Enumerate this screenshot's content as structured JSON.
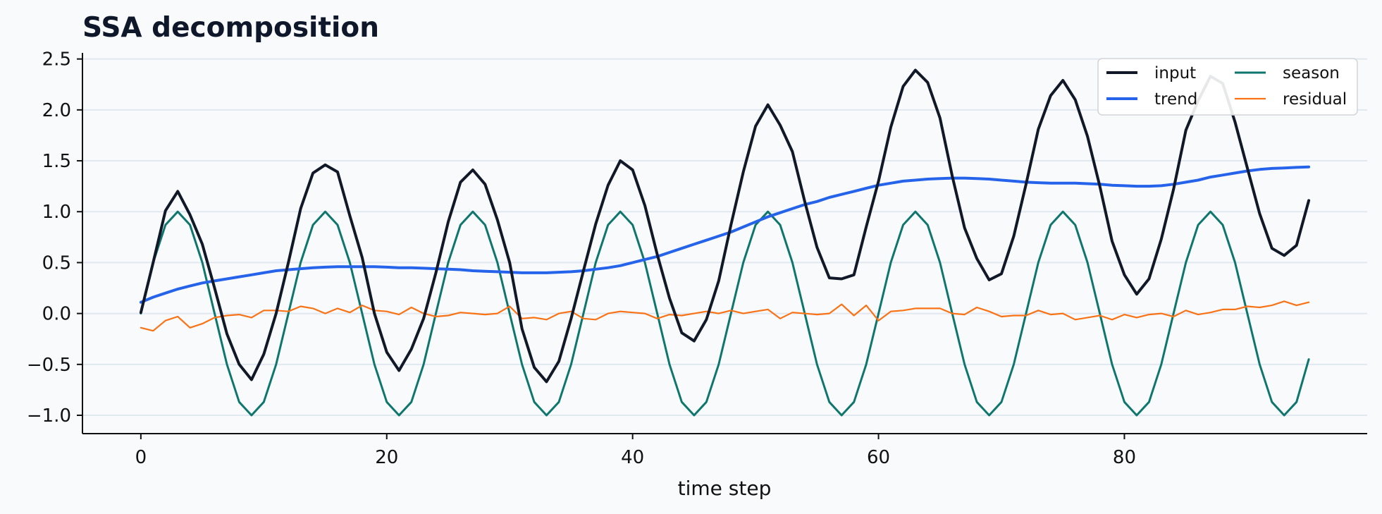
{
  "chart_data": {
    "type": "line",
    "title": "SSA decomposition",
    "xlabel": "time step",
    "ylabel": "",
    "xlim": [
      -4.75,
      99.75
    ],
    "ylim": [
      -1.18,
      2.56
    ],
    "xticks": [
      0,
      20,
      40,
      60,
      80
    ],
    "yticks": [
      -1.0,
      -0.5,
      0.0,
      0.5,
      1.0,
      1.5,
      2.0,
      2.5
    ],
    "ytick_labels": [
      "−1.0",
      "−0.5",
      "0.0",
      "0.5",
      "1.0",
      "1.5",
      "2.0",
      "2.5"
    ],
    "grid": "horizontal",
    "legend": "top-right",
    "x": [
      0,
      1,
      2,
      3,
      4,
      5,
      6,
      7,
      8,
      9,
      10,
      11,
      12,
      13,
      14,
      15,
      16,
      17,
      18,
      19,
      20,
      21,
      22,
      23,
      24,
      25,
      26,
      27,
      28,
      29,
      30,
      31,
      32,
      33,
      34,
      35,
      36,
      37,
      38,
      39,
      40,
      41,
      42,
      43,
      44,
      45,
      46,
      47,
      48,
      49,
      50,
      51,
      52,
      53,
      54,
      55,
      56,
      57,
      58,
      59,
      60,
      61,
      62,
      63,
      64,
      65,
      66,
      67,
      68,
      69,
      70,
      71,
      72,
      73,
      74,
      75,
      76,
      77,
      78,
      79,
      80,
      81,
      82,
      83,
      84,
      85,
      86,
      87,
      88,
      89,
      90,
      91,
      92,
      93,
      94,
      95
    ],
    "series": [
      {
        "name": "input",
        "color": "#111827",
        "width": 4,
        "values": [
          0.01,
          0.5,
          1.01,
          1.2,
          0.97,
          0.68,
          0.25,
          -0.2,
          -0.5,
          -0.65,
          -0.4,
          0.0,
          0.5,
          1.03,
          1.38,
          1.46,
          1.39,
          0.96,
          0.55,
          0.0,
          -0.38,
          -0.56,
          -0.35,
          -0.05,
          0.4,
          0.9,
          1.29,
          1.41,
          1.27,
          0.92,
          0.5,
          -0.15,
          -0.53,
          -0.67,
          -0.47,
          -0.05,
          0.42,
          0.88,
          1.26,
          1.5,
          1.41,
          1.06,
          0.58,
          0.15,
          -0.19,
          -0.27,
          -0.06,
          0.32,
          0.87,
          1.39,
          1.84,
          2.05,
          1.85,
          1.59,
          1.1,
          0.65,
          0.35,
          0.34,
          0.38,
          0.85,
          1.3,
          1.83,
          2.23,
          2.39,
          2.27,
          1.92,
          1.35,
          0.84,
          0.54,
          0.33,
          0.39,
          0.76,
          1.27,
          1.81,
          2.14,
          2.29,
          2.1,
          1.74,
          1.25,
          0.71,
          0.38,
          0.19,
          0.34,
          0.73,
          1.22,
          1.8,
          2.09,
          2.33,
          2.26,
          1.88,
          1.43,
          0.98,
          0.64,
          0.57,
          0.67,
          1.11
        ]
      },
      {
        "name": "trend",
        "color": "#2563eb",
        "width": 4,
        "values": [
          0.11,
          0.16,
          0.2,
          0.24,
          0.27,
          0.3,
          0.32,
          0.34,
          0.36,
          0.38,
          0.4,
          0.42,
          0.43,
          0.44,
          0.45,
          0.455,
          0.46,
          0.46,
          0.46,
          0.46,
          0.455,
          0.45,
          0.45,
          0.445,
          0.44,
          0.435,
          0.43,
          0.42,
          0.415,
          0.41,
          0.405,
          0.4,
          0.4,
          0.4,
          0.405,
          0.41,
          0.42,
          0.435,
          0.45,
          0.47,
          0.5,
          0.53,
          0.56,
          0.6,
          0.64,
          0.68,
          0.72,
          0.76,
          0.8,
          0.85,
          0.9,
          0.95,
          0.99,
          1.03,
          1.07,
          1.1,
          1.14,
          1.17,
          1.2,
          1.23,
          1.26,
          1.28,
          1.3,
          1.31,
          1.32,
          1.325,
          1.33,
          1.33,
          1.325,
          1.32,
          1.31,
          1.3,
          1.29,
          1.285,
          1.28,
          1.28,
          1.28,
          1.275,
          1.27,
          1.26,
          1.255,
          1.25,
          1.25,
          1.255,
          1.27,
          1.29,
          1.31,
          1.34,
          1.36,
          1.38,
          1.4,
          1.415,
          1.425,
          1.43,
          1.435,
          1.44
        ]
      },
      {
        "name": "season",
        "color": "#0f766e",
        "width": 3,
        "values": [
          0.0,
          0.5,
          0.87,
          1.0,
          0.87,
          0.5,
          0.0,
          -0.5,
          -0.87,
          -1.0,
          -0.87,
          -0.5,
          0.0,
          0.5,
          0.87,
          1.0,
          0.87,
          0.5,
          0.0,
          -0.5,
          -0.87,
          -1.0,
          -0.87,
          -0.5,
          0.0,
          0.5,
          0.87,
          1.0,
          0.87,
          0.5,
          0.0,
          -0.5,
          -0.87,
          -1.0,
          -0.87,
          -0.5,
          0.0,
          0.5,
          0.87,
          1.0,
          0.87,
          0.5,
          0.0,
          -0.5,
          -0.87,
          -1.0,
          -0.87,
          -0.5,
          0.0,
          0.5,
          0.87,
          1.0,
          0.87,
          0.5,
          0.0,
          -0.5,
          -0.87,
          -1.0,
          -0.87,
          -0.5,
          0.0,
          0.5,
          0.87,
          1.0,
          0.87,
          0.5,
          0.0,
          -0.5,
          -0.87,
          -1.0,
          -0.87,
          -0.5,
          0.0,
          0.5,
          0.87,
          1.0,
          0.87,
          0.5,
          0.0,
          -0.5,
          -0.87,
          -1.0,
          -0.87,
          -0.5,
          0.0,
          0.5,
          0.87,
          1.0,
          0.87,
          0.5,
          0.0,
          -0.5,
          -0.87,
          -1.0,
          -0.87,
          -0.45
        ]
      },
      {
        "name": "residual",
        "color": "#f97316",
        "width": 2.2,
        "values": [
          -0.14,
          -0.17,
          -0.07,
          -0.03,
          -0.14,
          -0.1,
          -0.04,
          -0.02,
          -0.01,
          -0.04,
          0.03,
          0.03,
          0.02,
          0.07,
          0.05,
          0.0,
          0.05,
          0.01,
          0.08,
          0.03,
          0.02,
          -0.01,
          0.06,
          0.0,
          -0.03,
          -0.02,
          0.01,
          0.0,
          -0.01,
          0.0,
          0.07,
          -0.05,
          -0.04,
          -0.06,
          0.0,
          0.02,
          -0.05,
          -0.06,
          0.0,
          0.02,
          0.01,
          0.0,
          -0.05,
          -0.01,
          -0.02,
          0.0,
          0.02,
          0.0,
          0.03,
          0.0,
          0.02,
          0.04,
          -0.05,
          0.01,
          0.0,
          -0.01,
          0.0,
          0.09,
          -0.02,
          0.08,
          -0.07,
          0.02,
          0.03,
          0.05,
          0.05,
          0.05,
          0.0,
          -0.01,
          0.06,
          0.02,
          -0.03,
          -0.02,
          -0.02,
          0.03,
          -0.01,
          0.0,
          -0.06,
          -0.04,
          -0.02,
          -0.06,
          -0.01,
          -0.04,
          -0.01,
          0.0,
          -0.03,
          0.03,
          -0.01,
          0.01,
          0.04,
          0.04,
          0.07,
          0.06,
          0.08,
          0.12,
          0.08,
          0.11
        ]
      }
    ],
    "legend_order": [
      "input",
      "season",
      "trend",
      "residual"
    ]
  }
}
